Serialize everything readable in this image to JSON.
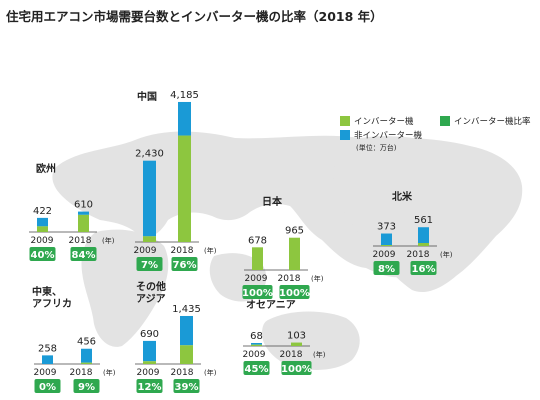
{
  "title": "住宅用エアコン市場需要台数とインバーター機の比率（2018 年）",
  "legend": {
    "inverter": "インバーター機",
    "non_inverter": "非インバーター機",
    "ratio": "インバーター機比率",
    "unit": "(単位：万台)"
  },
  "colors": {
    "inverter": "#8dc63f",
    "non_inverter": "#1a9ad6",
    "ratio_badge": "#2fa84f",
    "map": "#e3e3e3"
  },
  "year_suffix": "(年)",
  "chart_data": {
    "type": "bar",
    "stacked": true,
    "unit": "万台",
    "regions": [
      {
        "name": "欧州",
        "years": [
          {
            "year": "2009",
            "total": "422",
            "ratio": "40%",
            "inverter_share": 0.4
          },
          {
            "year": "2018",
            "total": "610",
            "ratio": "84%",
            "inverter_share": 0.84
          }
        ]
      },
      {
        "name": "中国",
        "years": [
          {
            "year": "2009",
            "total": "2,430",
            "ratio": "7%",
            "inverter_share": 0.07
          },
          {
            "year": "2018",
            "total": "4,185",
            "ratio": "76%",
            "inverter_share": 0.76
          }
        ]
      },
      {
        "name": "日本",
        "years": [
          {
            "year": "2009",
            "total": "678",
            "ratio": "100%",
            "inverter_share": 1.0
          },
          {
            "year": "2018",
            "total": "965",
            "ratio": "100%",
            "inverter_share": 1.0
          }
        ]
      },
      {
        "name": "北米",
        "years": [
          {
            "year": "2009",
            "total": "373",
            "ratio": "8%",
            "inverter_share": 0.08
          },
          {
            "year": "2018",
            "total": "561",
            "ratio": "16%",
            "inverter_share": 0.16
          }
        ]
      },
      {
        "name": "中東、アフリカ",
        "years": [
          {
            "year": "2009",
            "total": "258",
            "ratio": "0%",
            "inverter_share": 0.0
          },
          {
            "year": "2018",
            "total": "456",
            "ratio": "9%",
            "inverter_share": 0.09
          }
        ]
      },
      {
        "name": "その他アジア",
        "years": [
          {
            "year": "2009",
            "total": "690",
            "ratio": "12%",
            "inverter_share": 0.12
          },
          {
            "year": "2018",
            "total": "1,435",
            "ratio": "39%",
            "inverter_share": 0.39
          }
        ]
      },
      {
        "name": "オセアニア",
        "years": [
          {
            "year": "2009",
            "total": "68",
            "ratio": "45%",
            "inverter_share": 0.45
          },
          {
            "year": "2018",
            "total": "103",
            "ratio": "100%",
            "inverter_share": 1.0
          }
        ]
      }
    ]
  }
}
